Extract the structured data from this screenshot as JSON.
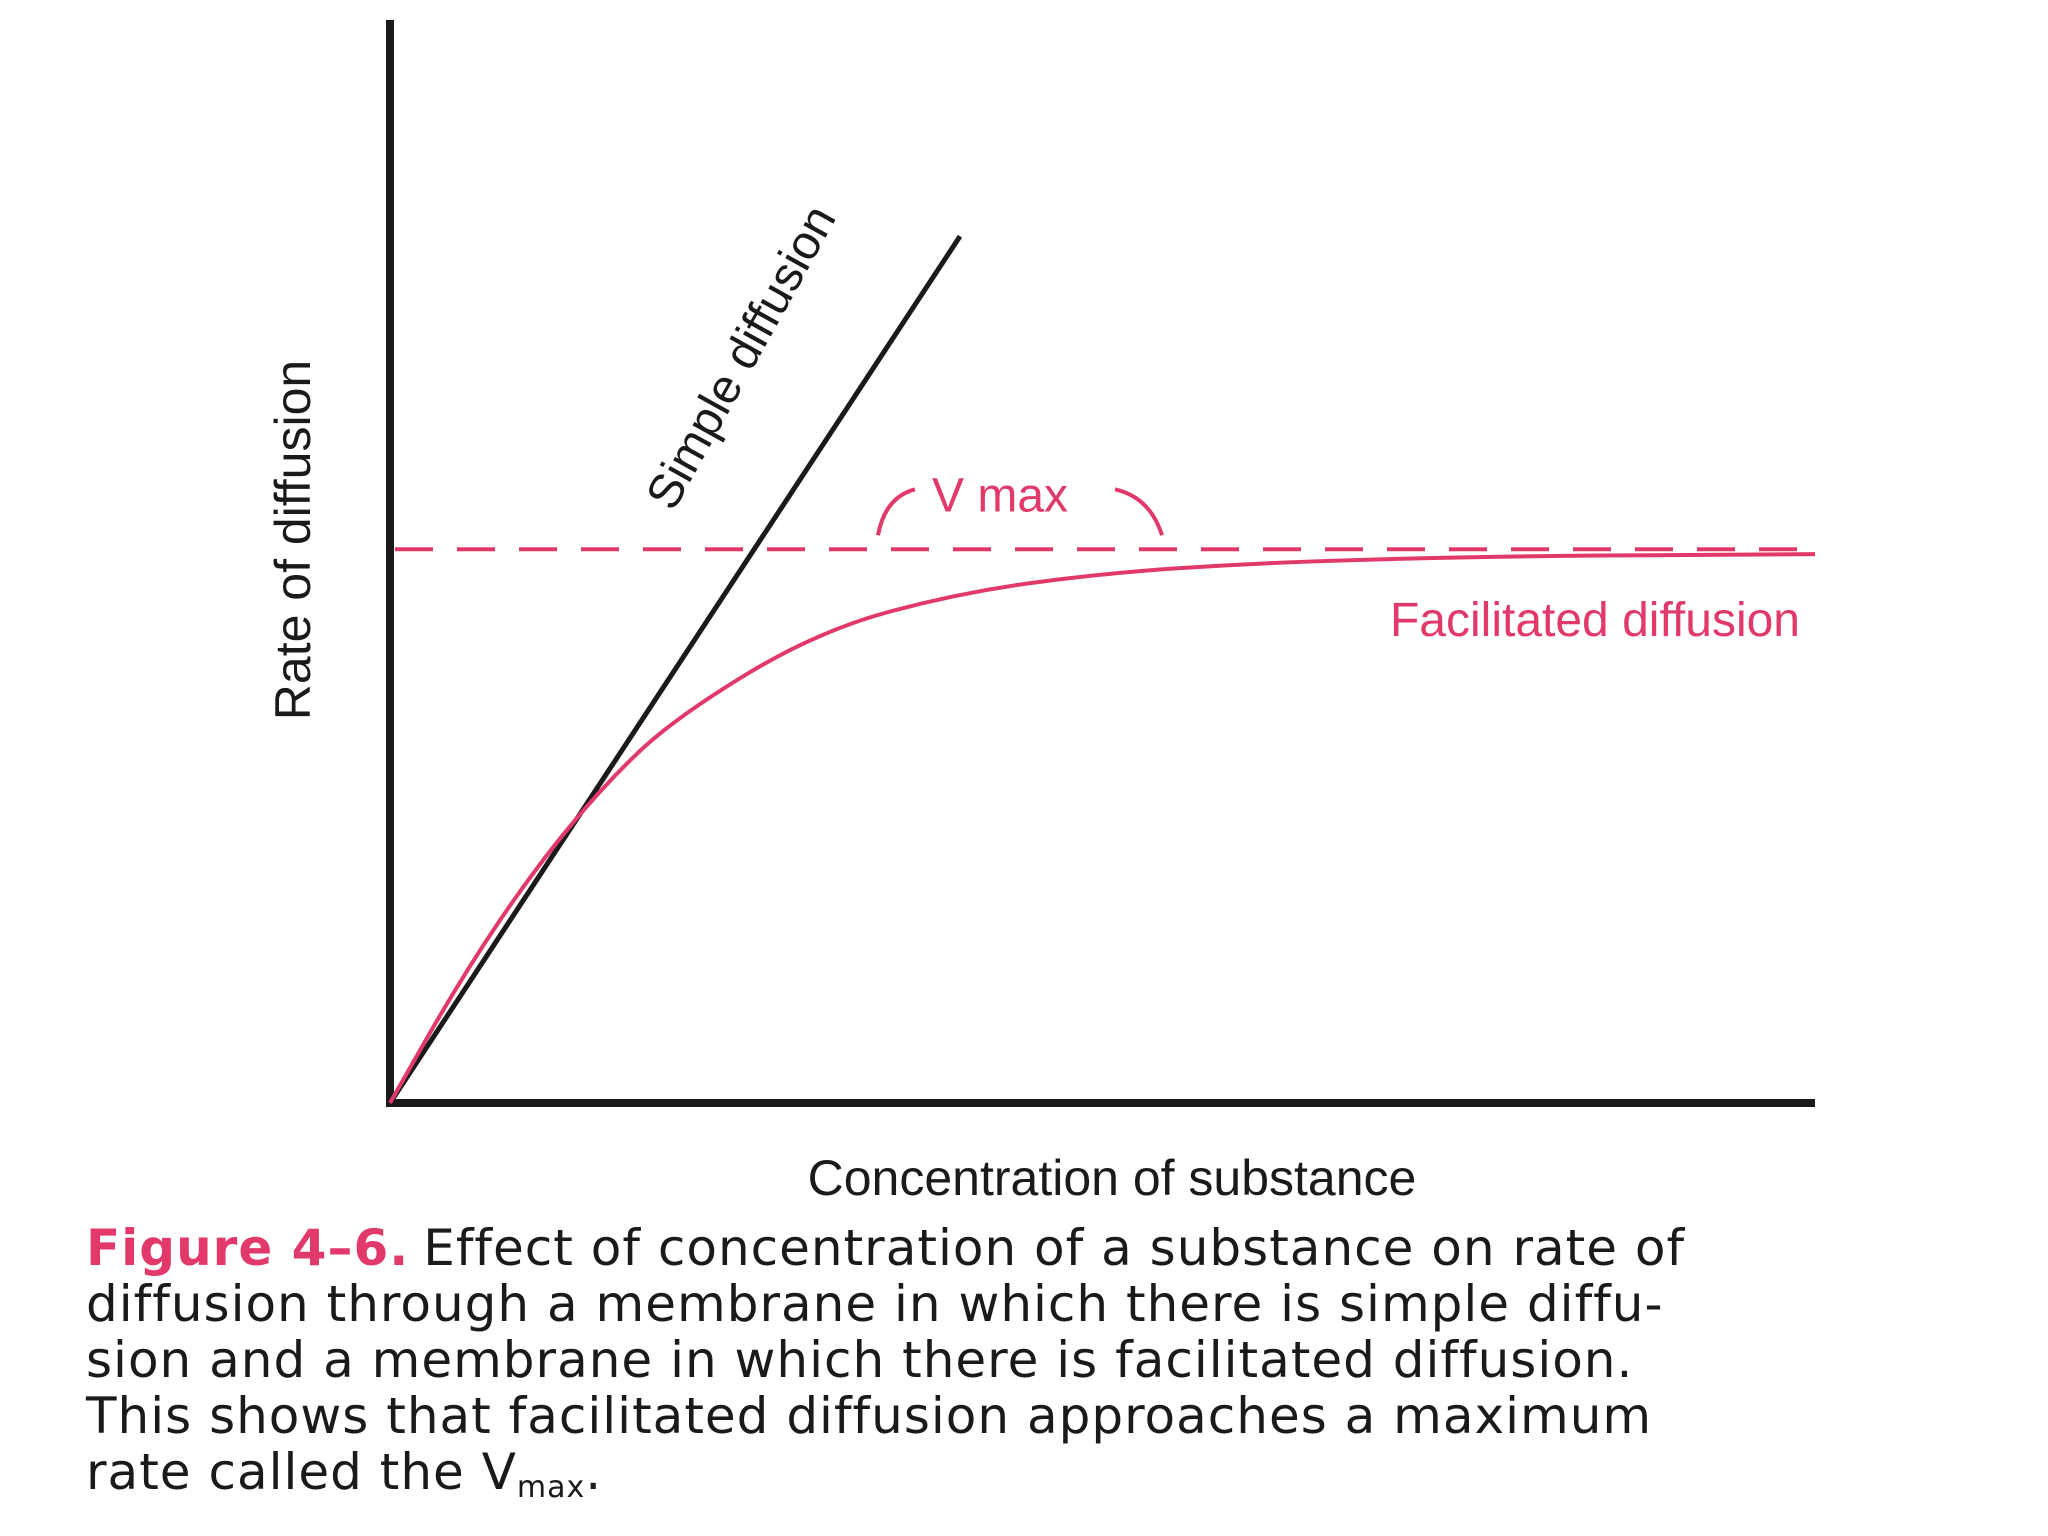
{
  "chart_data": {
    "type": "line",
    "xlabel": "Concentration of substance",
    "ylabel": "Rate of diffusion",
    "xlim": [
      0,
      10
    ],
    "ylim": [
      0,
      10
    ],
    "series": [
      {
        "name": "Simple diffusion",
        "color": "#1a1a1a",
        "style": "solid",
        "x": [
          0,
          4
        ],
        "y": [
          0,
          9.0
        ]
      },
      {
        "name": "Facilitated diffusion",
        "color": "#e0396a",
        "style": "solid",
        "x": [
          0,
          0.5,
          1,
          1.5,
          2,
          3,
          4,
          5,
          6,
          7,
          8,
          9,
          10
        ],
        "y": [
          0,
          1.3,
          2.4,
          3.3,
          4.0,
          4.9,
          5.3,
          5.5,
          5.6,
          5.65,
          5.68,
          5.69,
          5.7
        ]
      }
    ],
    "reference_lines": [
      {
        "label": "V max",
        "y": 5.75,
        "color": "#e0396a",
        "style": "dashed"
      }
    ],
    "grid": false,
    "legend": "none"
  },
  "caption": {
    "label": "Figure 4–6.",
    "line1": "Effect of concentration of a substance on rate of",
    "line2": "diffusion through a membrane in which there is simple diffu-",
    "line3": "sion and a membrane in which there is facilitated diffusion.",
    "line4": "This shows that facilitated diffusion approaches a maximum",
    "line5_prefix": "rate called the V",
    "line5_sub": "max",
    "line5_suffix": "."
  },
  "colors": {
    "accent": "#e0396a",
    "ink": "#1a1a1a"
  }
}
